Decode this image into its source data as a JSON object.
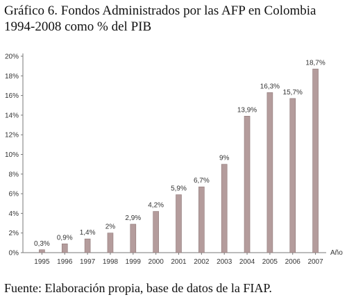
{
  "title_line1": "Gráfico 6. Fondos Administrados por las AFP  en Colombia",
  "title_line2": "1994-2008 como % del PIB",
  "source": "Fuente: Elaboración propia, base de datos de la FIAP.",
  "chart_data": {
    "type": "bar",
    "categories": [
      "1995",
      "1996",
      "1997",
      "1998",
      "1999",
      "2000",
      "2001",
      "2002",
      "2003",
      "2004",
      "2005",
      "2006",
      "2007"
    ],
    "values": [
      0.3,
      0.9,
      1.4,
      2,
      2.9,
      4.2,
      5.9,
      6.7,
      9,
      13.9,
      16.3,
      15.7,
      18.7
    ],
    "data_labels": [
      "0,3%",
      "0,9%",
      "1,4%",
      "2%",
      "2,9%",
      "4,2%",
      "5,9%",
      "6,7%",
      "9%",
      "13,9%",
      "16,3%",
      "15,7%",
      "18,7%"
    ],
    "xlabel": "Año",
    "ylabel": "",
    "ylim": [
      0,
      20
    ],
    "yticks": [
      0,
      2,
      4,
      6,
      8,
      10,
      12,
      14,
      16,
      18,
      20
    ],
    "ytick_labels": [
      "0%",
      "2%",
      "4%",
      "6%",
      "8%",
      "10%",
      "12%",
      "14%",
      "16%",
      "18%",
      "20%"
    ],
    "grid": false,
    "bar_color": "#b49c9c"
  }
}
